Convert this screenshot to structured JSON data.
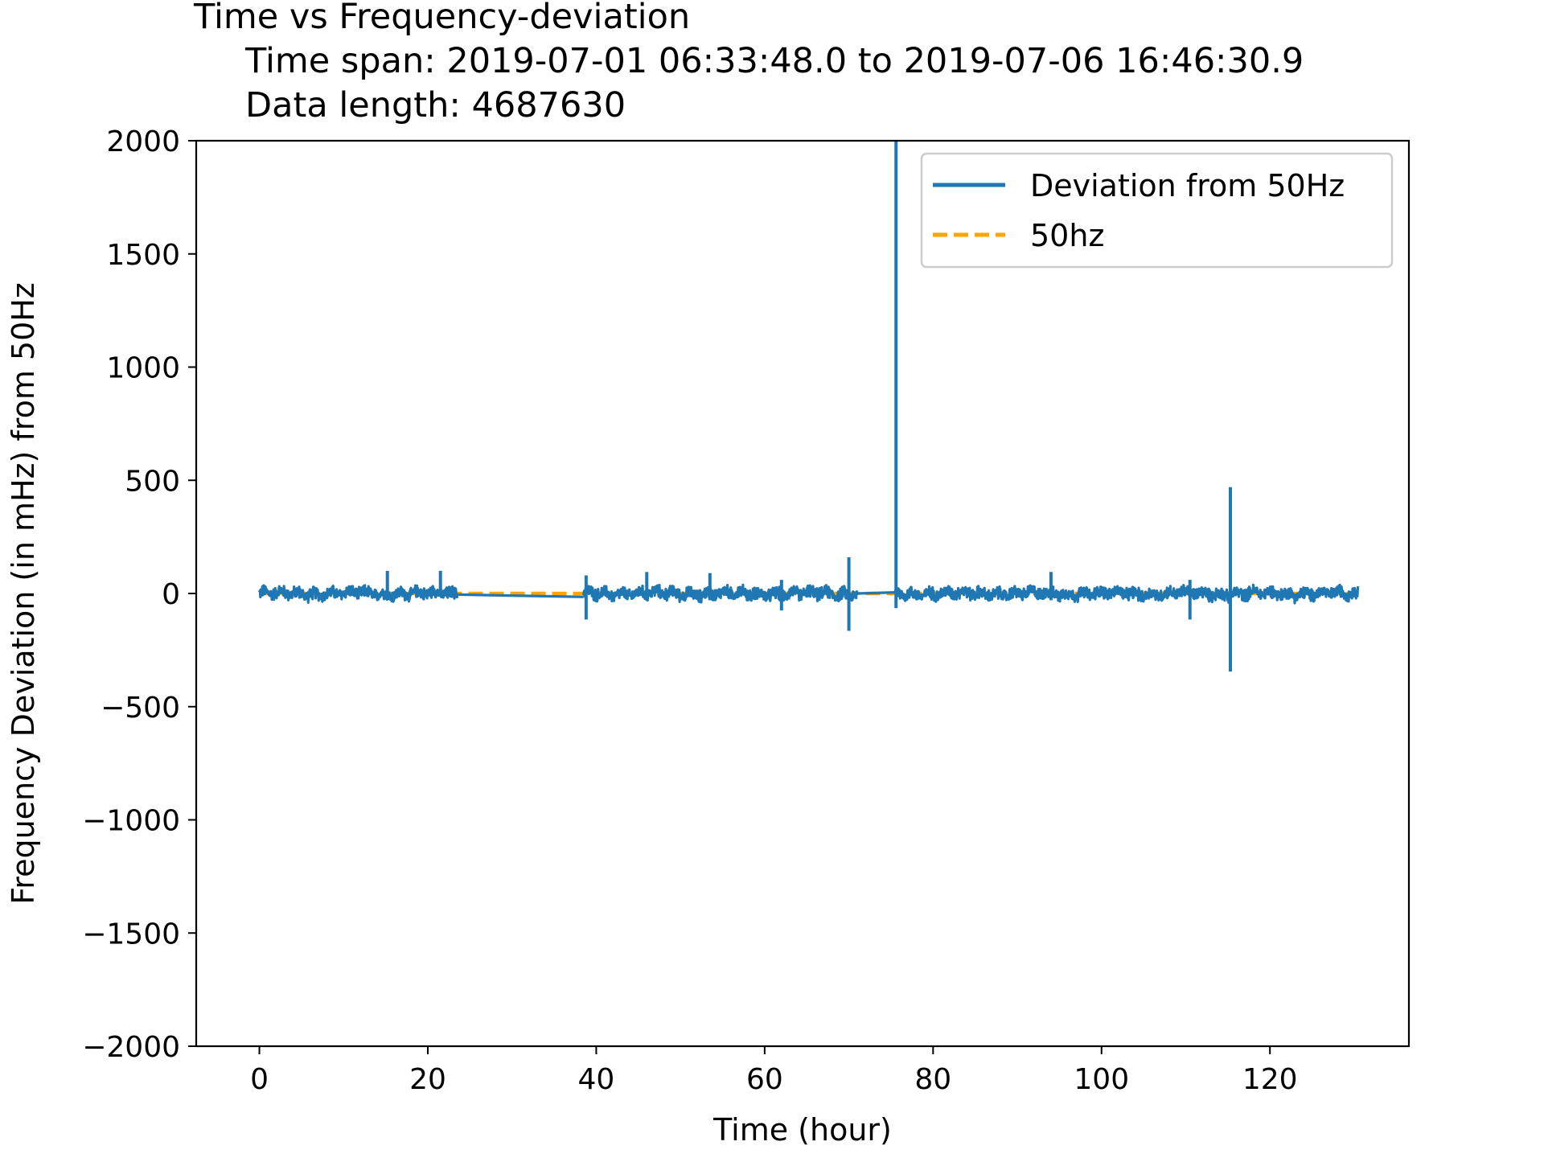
{
  "chart_data": {
    "type": "line",
    "title": "Time vs Frequency-deviation",
    "subtitle_lines": [
      "Time span: 2019-07-01 06:33:48.0 to 2019-07-06 16:46:30.9",
      "Data length: 4687630"
    ],
    "xlabel": "Time (hour)",
    "ylabel": "Frequency Deviation (in mHz) from 50Hz",
    "xlim": [
      -7.5,
      136.5
    ],
    "ylim": [
      -2000,
      2000
    ],
    "xticks": [
      0,
      20,
      40,
      60,
      80,
      100,
      120
    ],
    "xtick_labels": [
      "0",
      "20",
      "40",
      "60",
      "80",
      "100",
      "120"
    ],
    "yticks": [
      2000,
      1500,
      1000,
      500,
      0,
      -500,
      -1000,
      -1500,
      -2000
    ],
    "ytick_labels": [
      "2000",
      "1500",
      "1000",
      "500",
      "0",
      "−500",
      "−1000",
      "−1500",
      "−2000"
    ],
    "grid": false,
    "legend_position": "top-right",
    "series": [
      {
        "name": "Deviation from 50Hz",
        "color": "#1f77b4",
        "style": "solid",
        "segments": [
          {
            "x_start": 0,
            "x_end": 23.5
          },
          {
            "x_start": 38.5,
            "x_end": 71.0
          },
          {
            "x_start": 75.5,
            "x_end": 130.5
          }
        ],
        "gaps": [
          {
            "from": [
              23.5,
              -5
            ],
            "to": [
              38.5,
              -15
            ]
          },
          {
            "from": [
              71.0,
              0
            ],
            "to": [
              75.5,
              5
            ]
          }
        ],
        "noise_amplitude": 25,
        "spikes": [
          {
            "x": 15.2,
            "min": -10,
            "max": 100
          },
          {
            "x": 21.5,
            "min": -10,
            "max": 100
          },
          {
            "x": 38.8,
            "min": -115,
            "max": 80
          },
          {
            "x": 46.0,
            "min": -30,
            "max": 95
          },
          {
            "x": 53.5,
            "min": -30,
            "max": 90
          },
          {
            "x": 62.0,
            "min": -75,
            "max": 60
          },
          {
            "x": 70.0,
            "min": -165,
            "max": 160
          },
          {
            "x": 75.6,
            "min": -65,
            "max": 2000
          },
          {
            "x": 94.0,
            "min": -30,
            "max": 95
          },
          {
            "x": 110.5,
            "min": -115,
            "max": 60
          },
          {
            "x": 115.3,
            "min": -345,
            "max": 470
          }
        ]
      },
      {
        "name": "50hz",
        "color": "#ffa500",
        "style": "dashed",
        "x": [
          0,
          130.5
        ],
        "y": [
          0,
          0
        ]
      }
    ]
  }
}
